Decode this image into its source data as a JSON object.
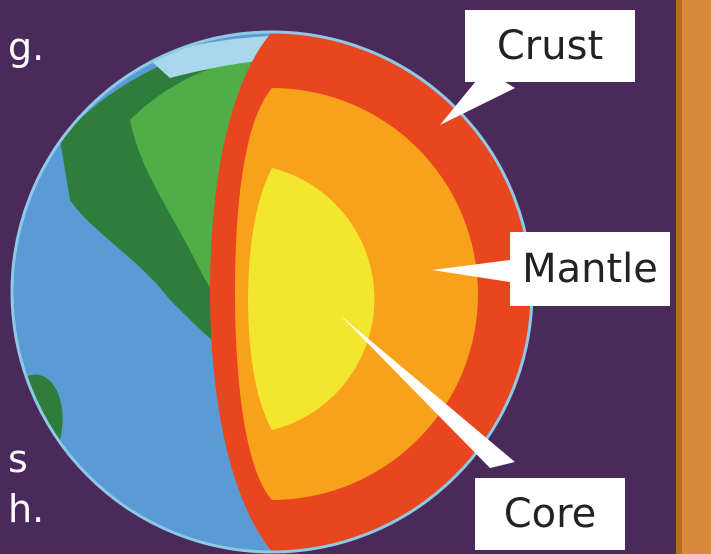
{
  "labels": {
    "crust": "Crust",
    "mantle": "Mantle",
    "core": "Core"
  },
  "text_fragments": {
    "top_left": "g.",
    "bottom_left_1": "s",
    "bottom_left_2": "h."
  },
  "colors": {
    "background": "#4a2a5a",
    "ocean": "#5b9bd5",
    "land_dark": "#2f7d3a",
    "land_light": "#4fae48",
    "crust": "#e8461e",
    "mantle": "#f7a21a",
    "core": "#f2e62e",
    "label_bg": "#ffffff",
    "wood": "#d98a3a"
  }
}
